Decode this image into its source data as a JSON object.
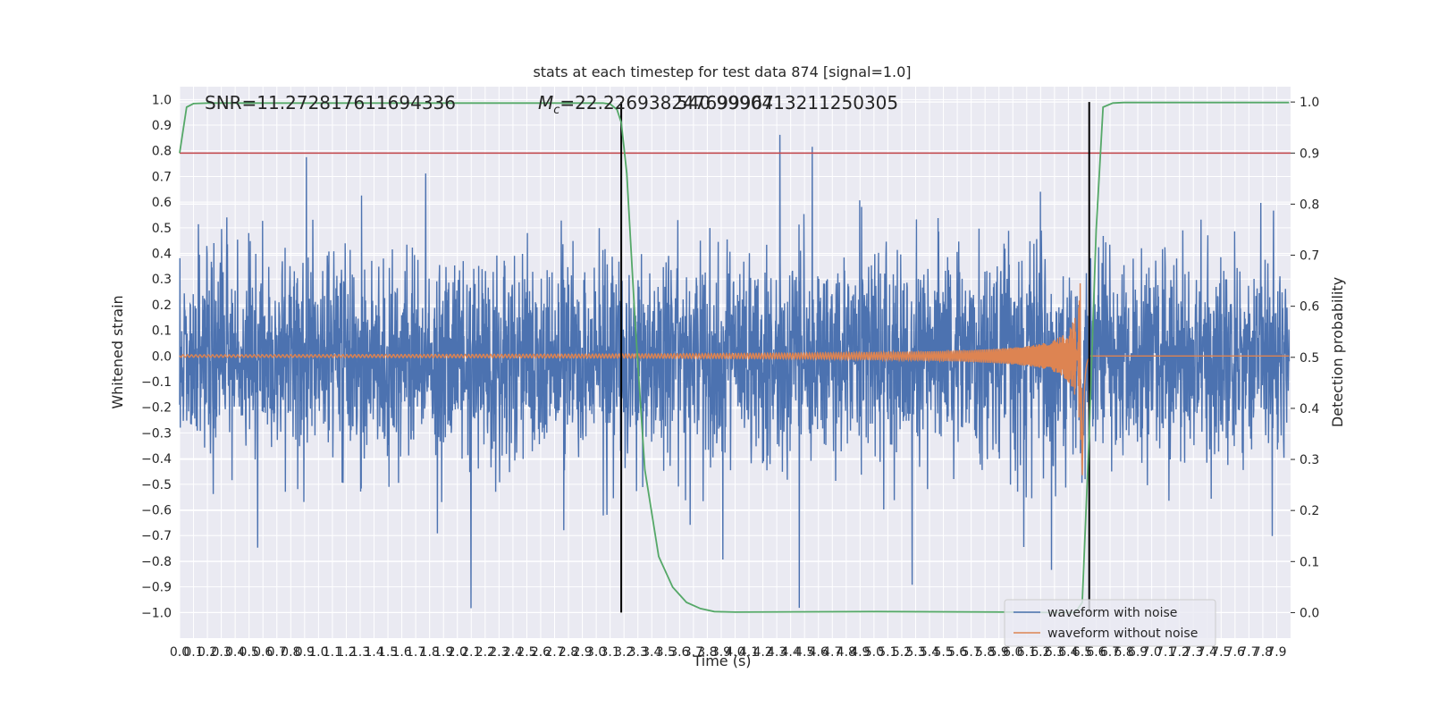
{
  "chart_data": {
    "type": "line",
    "title": "stats at each timestep for test data 874 [signal=1.0]",
    "xlabel": "Time (s)",
    "ylabel": "Whitened strain",
    "y2label": "Detection probability",
    "xlim": [
      0.0,
      8.0
    ],
    "ylim": [
      -1.1,
      1.05
    ],
    "y2lim": [
      -0.05,
      1.03
    ],
    "x_ticks": [
      "0.0",
      "0.1",
      "0.2",
      "0.3",
      "0.4",
      "0.5",
      "0.6",
      "0.7",
      "0.8",
      "0.9",
      "1.0",
      "1.1",
      "1.2",
      "1.3",
      "1.4",
      "1.5",
      "1.6",
      "1.7",
      "1.8",
      "1.9",
      "2.0",
      "2.1",
      "2.2",
      "2.3",
      "2.4",
      "2.5",
      "2.6",
      "2.7",
      "2.8",
      "2.9",
      "3.0",
      "3.1",
      "3.2",
      "3.3",
      "3.4",
      "3.5",
      "3.6",
      "3.7",
      "3.8",
      "3.9",
      "4.0",
      "4.1",
      "4.2",
      "4.3",
      "4.4",
      "4.5",
      "4.6",
      "4.7",
      "4.8",
      "4.9",
      "5.0",
      "5.1",
      "5.2",
      "5.3",
      "5.4",
      "5.5",
      "5.6",
      "5.7",
      "5.8",
      "5.9",
      "6.0",
      "6.1",
      "6.2",
      "6.3",
      "6.4",
      "6.5",
      "6.6",
      "6.7",
      "6.8",
      "6.9",
      "7.0",
      "7.1",
      "7.2",
      "7.3",
      "7.4",
      "7.5",
      "7.6",
      "7.7",
      "7.8",
      "7.9"
    ],
    "y_ticks": [
      "−1.0",
      "−0.9",
      "−0.8",
      "−0.7",
      "−0.6",
      "−0.5",
      "−0.4",
      "−0.3",
      "−0.2",
      "−0.1",
      "0.0",
      "0.1",
      "0.2",
      "0.3",
      "0.4",
      "0.5",
      "0.6",
      "0.7",
      "0.8",
      "0.9",
      "1.0"
    ],
    "y2_ticks": [
      "0.0",
      "0.1",
      "0.2",
      "0.3",
      "0.4",
      "0.5",
      "0.6",
      "0.7",
      "0.8",
      "0.9",
      "1.0"
    ],
    "annotations": {
      "snr": "SNR=11.272817611694336",
      "mc_label": "M",
      "mc_sub": "c",
      "mc_value": "=22.226938247699967",
      "mc_overlap": "540.9990413211250305"
    },
    "threshold": 0.9,
    "vlines": [
      3.18,
      6.55
    ],
    "detection_probability": {
      "x": [
        0.0,
        0.05,
        0.1,
        0.2,
        3.05,
        3.1,
        3.15,
        3.18,
        3.22,
        3.28,
        3.35,
        3.45,
        3.55,
        3.65,
        3.75,
        3.85,
        4.0,
        5.0,
        6.0,
        6.3,
        6.45,
        6.5,
        6.55,
        6.6,
        6.65,
        6.72,
        6.8,
        7.0,
        7.99
      ],
      "y": [
        0.9,
        0.99,
        0.997,
        0.998,
        0.998,
        0.996,
        0.985,
        0.96,
        0.86,
        0.57,
        0.28,
        0.11,
        0.05,
        0.02,
        0.008,
        0.002,
        0.001,
        0.002,
        0.001,
        0.0,
        0.0,
        0.02,
        0.35,
        0.75,
        0.99,
        0.998,
        0.999,
        0.999,
        0.999
      ]
    },
    "noise": {
      "amplitude_typical": 0.35,
      "amplitude_peak": 0.98
    },
    "signal": {
      "start": 0.0,
      "merger": 6.5,
      "ringdown_end": 6.55,
      "peak_amplitude": 0.55
    },
    "series": [
      {
        "name": "waveform with noise",
        "color": "#4c72b0"
      },
      {
        "name": "waveform without noise",
        "color": "#dd8452"
      },
      {
        "color": "#55a868"
      },
      {
        "color": "#c44e52"
      },
      {
        "color": "#000000"
      }
    ],
    "legend_position": "lower-right",
    "grid": true,
    "background": "#eaeaf2"
  }
}
